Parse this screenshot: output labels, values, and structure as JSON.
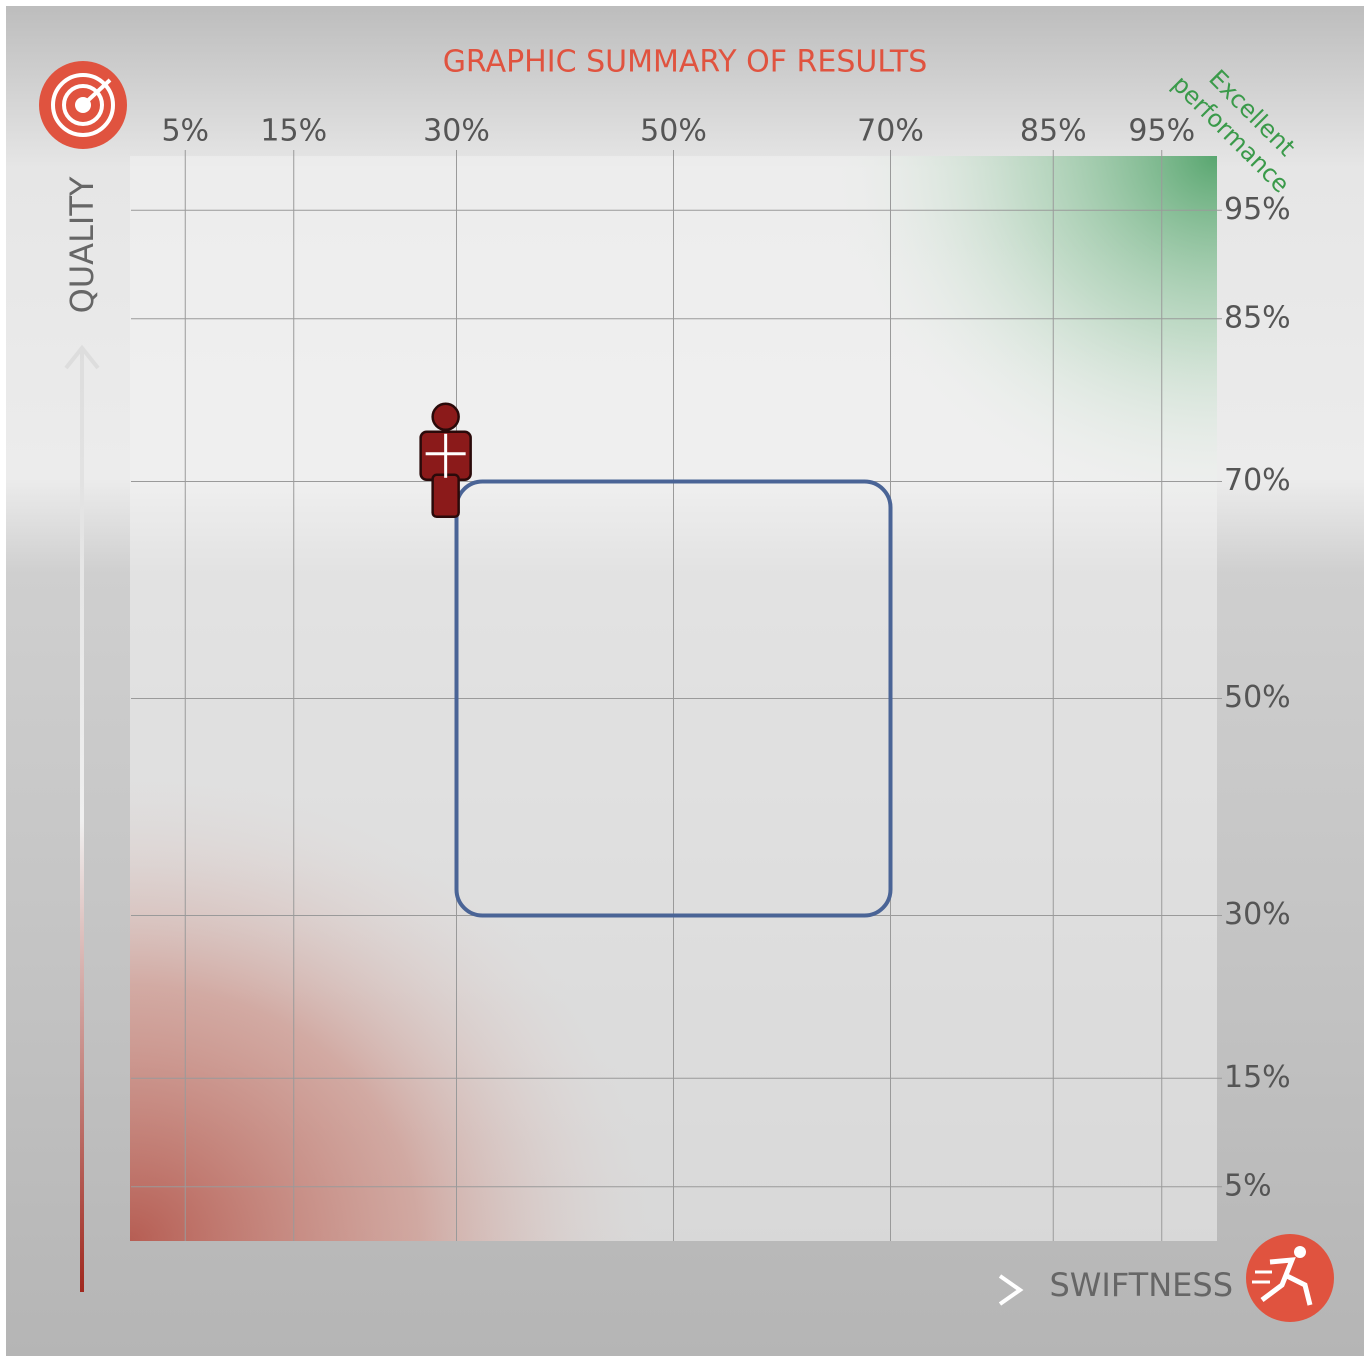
{
  "chart_data": {
    "type": "scatter",
    "title": "GRAPHIC SUMMARY OF RESULTS",
    "xlabel": "SWIFTNESS",
    "ylabel": "QUALITY",
    "annotation": [
      "Excellent",
      "performance"
    ],
    "x": [
      29
    ],
    "values": [
      72
    ],
    "color": "#8b1a1a",
    "target_range": {
      "x": [
        30,
        70
      ],
      "y": [
        30,
        70
      ],
      "color": "#4a6496"
    },
    "xlim": [
      0,
      100
    ],
    "ylim": [
      0,
      100
    ],
    "xticks": [
      {
        "value": 5,
        "label": "5%"
      },
      {
        "value": 15,
        "label": "15%"
      },
      {
        "value": 30,
        "label": "30%"
      },
      {
        "value": 50,
        "label": "50%"
      },
      {
        "value": 70,
        "label": "70%"
      },
      {
        "value": 85,
        "label": "85%"
      },
      {
        "value": 95,
        "label": "95%"
      }
    ],
    "yticks": [
      {
        "value": 95,
        "label": "95%"
      },
      {
        "value": 85,
        "label": "85%"
      },
      {
        "value": 70,
        "label": "70%"
      },
      {
        "value": 50,
        "label": "50%"
      },
      {
        "value": 30,
        "label": "30%"
      },
      {
        "value": 15,
        "label": "15%"
      },
      {
        "value": 5,
        "label": "5%"
      }
    ],
    "grid": true
  }
}
